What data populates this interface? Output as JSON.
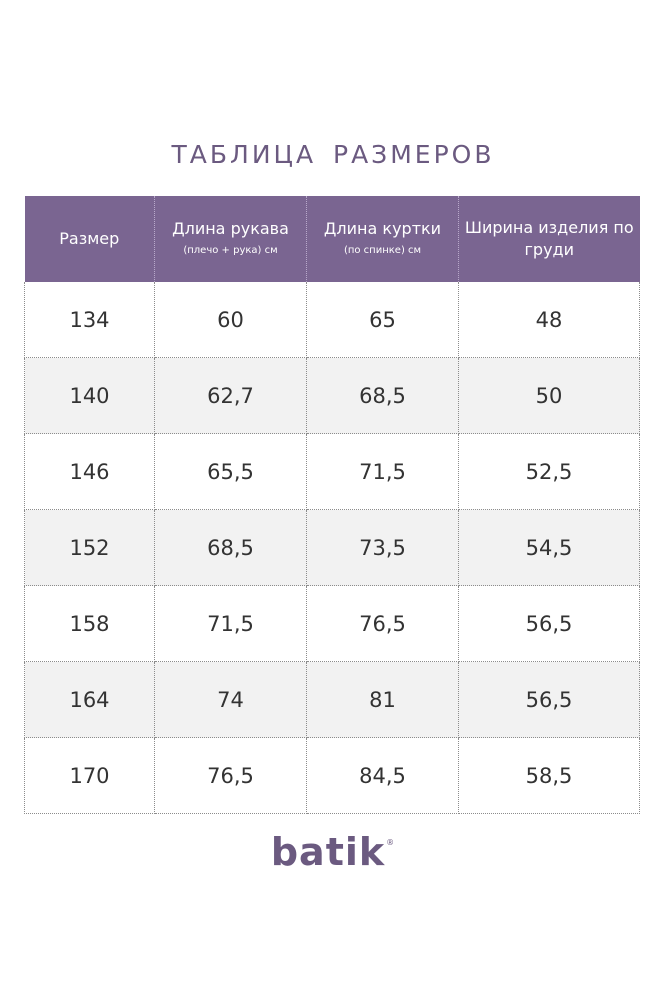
{
  "title": "ТАБЛИЦА  РАЗМЕРОВ",
  "table": {
    "headers": [
      {
        "main": "Размер",
        "sub": ""
      },
      {
        "main": "Длина рукава",
        "sub": "(плечо + рука) см"
      },
      {
        "main": "Длина куртки",
        "sub": "(по спинке) см"
      },
      {
        "main": "Ширина изделия по груди",
        "sub": ""
      }
    ],
    "rows": [
      [
        "134",
        "60",
        "65",
        "48"
      ],
      [
        "140",
        "62,7",
        "68,5",
        "50"
      ],
      [
        "146",
        "65,5",
        "71,5",
        "52,5"
      ],
      [
        "152",
        "68,5",
        "73,5",
        "54,5"
      ],
      [
        "158",
        "71,5",
        "76,5",
        "56,5"
      ],
      [
        "164",
        "74",
        "81",
        "56,5"
      ],
      [
        "170",
        "76,5",
        "84,5",
        "58,5"
      ]
    ]
  },
  "logo": {
    "text": "batik",
    "registered": "®"
  },
  "colors": {
    "header_bg": "#7a6591",
    "accent": "#6b5a80",
    "row_alt": "#f2f2f2"
  }
}
